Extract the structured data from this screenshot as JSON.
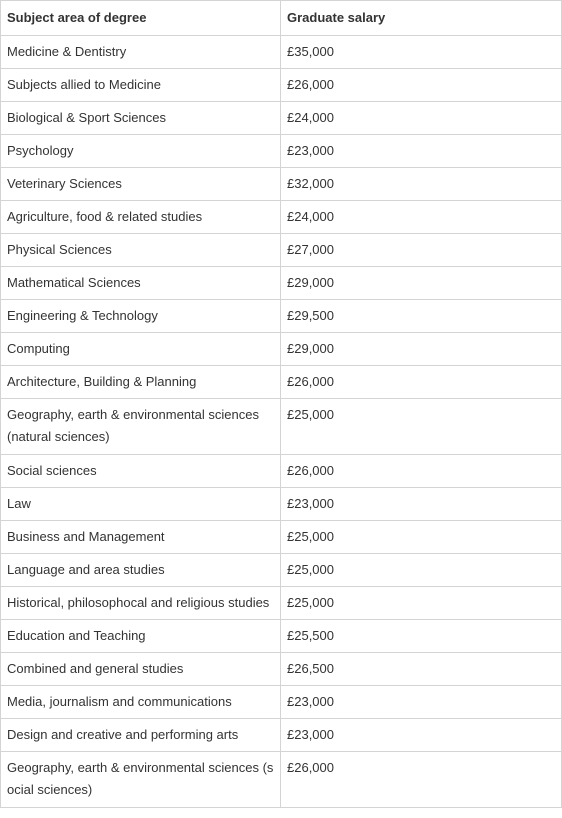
{
  "table": {
    "headers": [
      "Subject area of degree",
      "Graduate salary"
    ],
    "rows": [
      [
        "Medicine & Dentistry",
        "£35,000"
      ],
      [
        "Subjects allied to Medicine",
        "£26,000"
      ],
      [
        "Biological & Sport Sciences",
        "£24,000"
      ],
      [
        "Psychology",
        "£23,000"
      ],
      [
        "Veterinary Sciences",
        "£32,000"
      ],
      [
        "Agriculture, food & related studies",
        "£24,000"
      ],
      [
        "Physical Sciences",
        "£27,000"
      ],
      [
        "Mathematical Sciences",
        "£29,000"
      ],
      [
        "Engineering & Technology",
        "£29,500"
      ],
      [
        "Computing",
        "£29,000"
      ],
      [
        "Architecture, Building & Planning",
        "£26,000"
      ],
      [
        "Geography, earth & environmental sciences (natural sciences)",
        "£25,000"
      ],
      [
        "Social sciences",
        "£26,000"
      ],
      [
        "Law",
        "£23,000"
      ],
      [
        "Business and Management",
        "£25,000"
      ],
      [
        "Language and area studies",
        "£25,000"
      ],
      [
        "Historical, philosophocal and religious studies",
        "£25,000"
      ],
      [
        "Education and Teaching",
        "£25,500"
      ],
      [
        "Combined and general studies",
        "£26,500"
      ],
      [
        "Media, journalism and communications",
        "£23,000"
      ],
      [
        "Design and creative and performing arts",
        "£23,000"
      ],
      [
        "Geography, earth & environmental sciences (social sciences)",
        "£26,000"
      ]
    ]
  }
}
